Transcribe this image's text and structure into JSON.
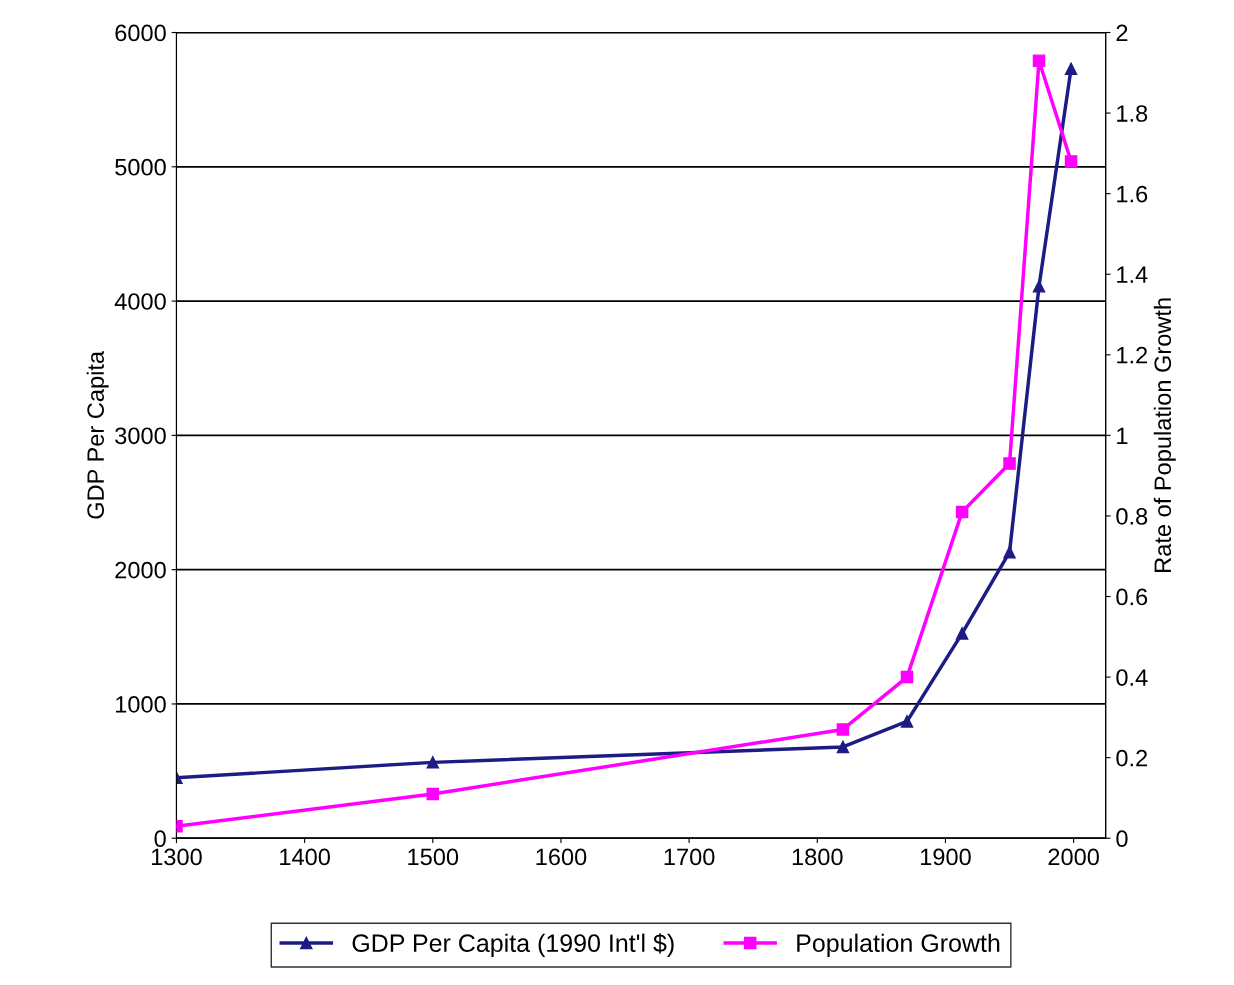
{
  "chart_data": {
    "type": "line",
    "xlabel": null,
    "ylabel": "GDP Per Capita",
    "y2label": "Rate of Population Growth",
    "x": [
      1300,
      1500,
      1820,
      1870,
      1913,
      1950,
      1973,
      1998
    ],
    "series": [
      {
        "name": "GDP Per Capita (1990 Int'l $)",
        "color": "#1c1c84",
        "marker": "triangle",
        "values": [
          450,
          565,
          680,
          870,
          1525,
          2130,
          4110,
          5730
        ]
      },
      {
        "name": "Population Growth",
        "color": "#ff00ff",
        "marker": "square",
        "axis": "y2",
        "values": [
          0.03,
          0.11,
          0.27,
          0.4,
          0.81,
          0.93,
          1.93,
          1.68
        ]
      }
    ],
    "xlim": [
      1300,
      2025
    ],
    "xticks": [
      1300,
      1400,
      1500,
      1600,
      1700,
      1800,
      1900,
      2000
    ],
    "ylim": [
      0,
      6000
    ],
    "yticks": [
      0,
      1000,
      2000,
      3000,
      4000,
      5000,
      6000
    ],
    "y2lim": [
      0,
      2
    ],
    "y2ticks": [
      0,
      0.2,
      0.4,
      0.6,
      0.8,
      1,
      1.2,
      1.4,
      1.6,
      1.8,
      2
    ],
    "grid": "y",
    "legend": "bottom",
    "line_style": "solid"
  }
}
